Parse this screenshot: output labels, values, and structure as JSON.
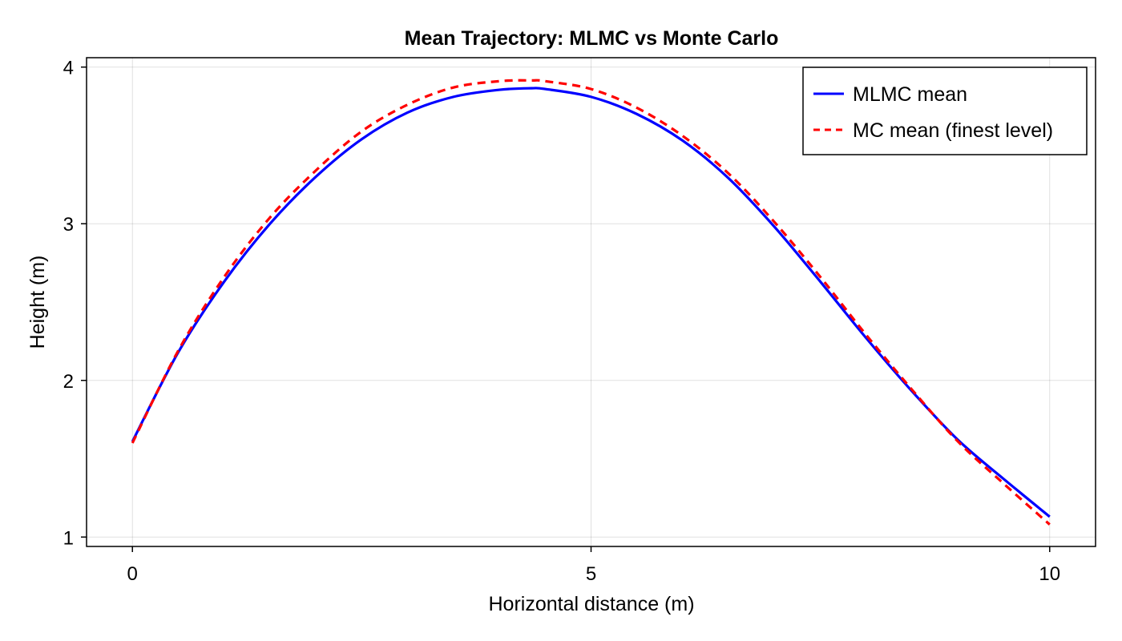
{
  "chart_data": {
    "type": "line",
    "title": "Mean Trajectory: MLMC vs Monte Carlo",
    "xlabel": "Horizontal distance (m)",
    "ylabel": "Height (m)",
    "xlim": [
      -0.5,
      10.5
    ],
    "ylim": [
      0.94,
      4.06
    ],
    "xticks": [
      0,
      5,
      10
    ],
    "xtick_labels": [
      "0",
      "5",
      "10"
    ],
    "yticks": [
      1,
      2,
      3,
      4
    ],
    "ytick_labels": [
      "1",
      "2",
      "3",
      "4"
    ],
    "grid": true,
    "legend_position": "top-right",
    "series": [
      {
        "name": "MLMC mean",
        "color": "#0000ff",
        "style": "solid",
        "x": [
          0,
          0.5,
          1,
          1.5,
          2,
          2.5,
          3,
          3.5,
          4,
          4.35,
          4.5,
          5,
          5.5,
          6,
          6.5,
          7,
          7.5,
          8,
          8.5,
          9,
          9.5,
          10
        ],
        "y": [
          1.61,
          2.18,
          2.63,
          3.0,
          3.3,
          3.54,
          3.71,
          3.81,
          3.855,
          3.865,
          3.86,
          3.81,
          3.7,
          3.53,
          3.29,
          2.98,
          2.63,
          2.27,
          1.93,
          1.62,
          1.37,
          1.13
        ]
      },
      {
        "name": "MC mean (finest level)",
        "color": "#ff0000",
        "style": "dashed",
        "x": [
          0,
          0.5,
          1,
          1.5,
          2,
          2.5,
          3,
          3.5,
          4,
          4.35,
          4.5,
          5,
          5.5,
          6,
          6.5,
          7,
          7.5,
          8,
          8.5,
          9,
          9.5,
          10
        ],
        "y": [
          1.6,
          2.19,
          2.66,
          3.04,
          3.34,
          3.59,
          3.76,
          3.87,
          3.91,
          3.915,
          3.91,
          3.86,
          3.74,
          3.56,
          3.32,
          3.01,
          2.66,
          2.29,
          1.94,
          1.61,
          1.34,
          1.08
        ]
      }
    ]
  }
}
